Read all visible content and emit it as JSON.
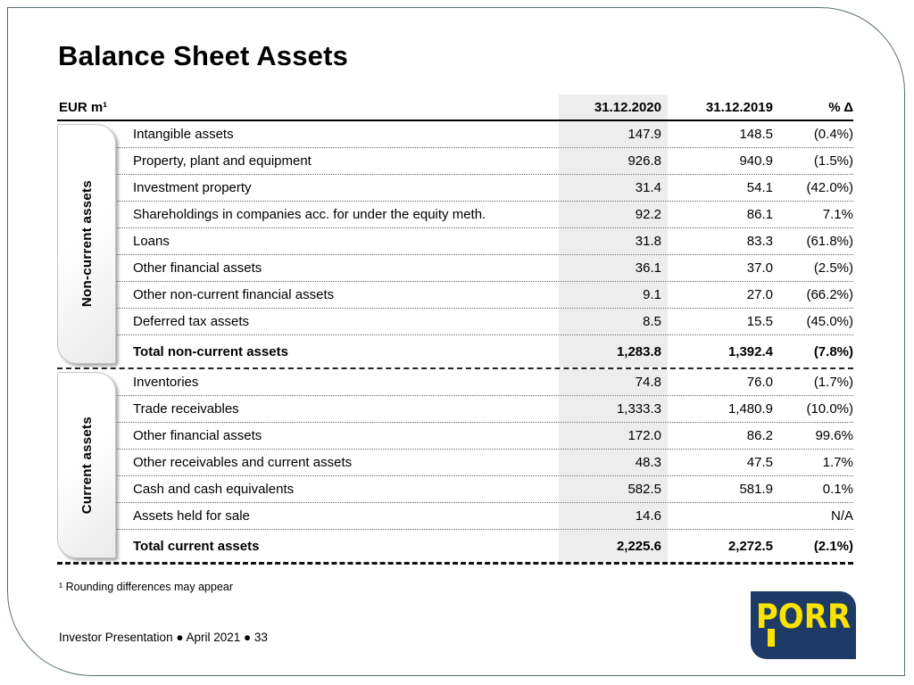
{
  "slide": {
    "title": "Balance Sheet Assets",
    "footnote": "¹ Rounding differences may appear",
    "footer": "Investor Presentation ● April 2021 ● 33"
  },
  "table": {
    "unit_label": "EUR m¹",
    "columns": [
      "31.12.2020",
      "31.12.2019",
      "% Δ"
    ],
    "sections": [
      {
        "label": "Non-current assets",
        "rows": [
          {
            "label": "Intangible assets",
            "v2020": "147.9",
            "v2019": "148.5",
            "delta": "(0.4%)"
          },
          {
            "label": "Property, plant and equipment",
            "v2020": "926.8",
            "v2019": "940.9",
            "delta": "(1.5%)"
          },
          {
            "label": "Investment property",
            "v2020": "31.4",
            "v2019": "54.1",
            "delta": "(42.0%)"
          },
          {
            "label": "Shareholdings in companies acc. for under the equity meth.",
            "v2020": "92.2",
            "v2019": "86.1",
            "delta": "7.1%"
          },
          {
            "label": "Loans",
            "v2020": "31.8",
            "v2019": "83.3",
            "delta": "(61.8%)"
          },
          {
            "label": "Other financial assets",
            "v2020": "36.1",
            "v2019": "37.0",
            "delta": "(2.5%)"
          },
          {
            "label": "Other non-current financial assets",
            "v2020": "9.1",
            "v2019": "27.0",
            "delta": "(66.2%)"
          },
          {
            "label": "Deferred tax assets",
            "v2020": "8.5",
            "v2019": "15.5",
            "delta": "(45.0%)"
          }
        ],
        "total": {
          "label": "Total non-current assets",
          "v2020": "1,283.8",
          "v2019": "1,392.4",
          "delta": "(7.8%)"
        }
      },
      {
        "label": "Current assets",
        "rows": [
          {
            "label": "Inventories",
            "v2020": "74.8",
            "v2019": "76.0",
            "delta": "(1.7%)"
          },
          {
            "label": "Trade receivables",
            "v2020": "1,333.3",
            "v2019": "1,480.9",
            "delta": "(10.0%)"
          },
          {
            "label": "Other financial assets",
            "v2020": "172.0",
            "v2019": "86.2",
            "delta": "99.6%"
          },
          {
            "label": "Other receivables and current assets",
            "v2020": "48.3",
            "v2019": "47.5",
            "delta": "1.7%"
          },
          {
            "label": "Cash and cash equivalents",
            "v2020": "582.5",
            "v2019": "581.9",
            "delta": "0.1%"
          },
          {
            "label": "Assets held for sale",
            "v2020": "14.6",
            "v2019": "",
            "delta": "N/A"
          }
        ],
        "total": {
          "label": "Total current assets",
          "v2020": "2,225.6",
          "v2019": "2,272.5",
          "delta": "(2.1%)"
        }
      }
    ]
  },
  "logo": {
    "text": "PORR"
  },
  "colors": {
    "accent_navy": "#1e3a66",
    "accent_yellow": "#f8e400",
    "col_highlight": "#ededed",
    "frame_border": "#5a6f74"
  }
}
